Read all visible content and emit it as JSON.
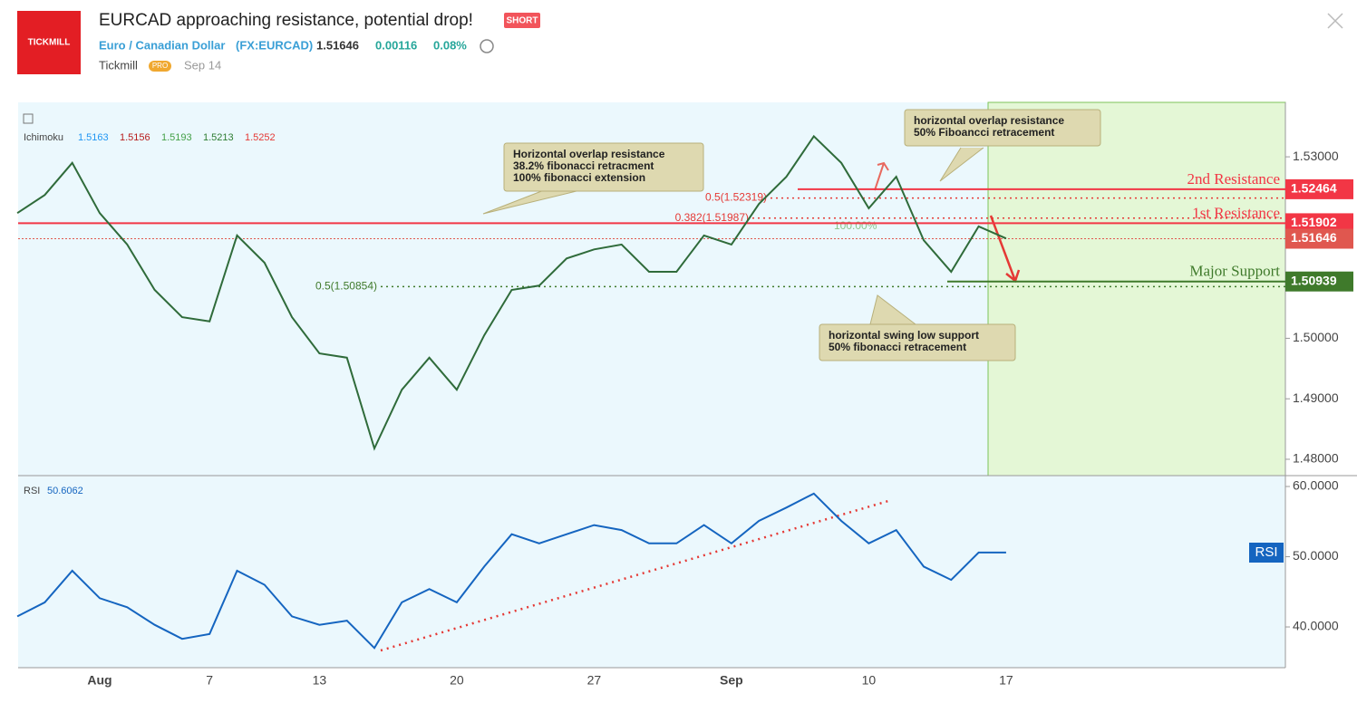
{
  "header": {
    "title": "EURCAD approaching resistance, potential drop!",
    "badge": "SHORT",
    "logo": "TICKMILL",
    "symbol_name": "Euro / Canadian Dollar",
    "symbol": "(FX:EURCAD)",
    "price": "1.51646",
    "change": "0.00116",
    "change_pct": "0.08%",
    "author": "Tickmill",
    "author_badge": "PRO",
    "date": "Sep 14"
  },
  "chart_data": [
    {
      "type": "line",
      "color": "#2f6b3a",
      "categories": [
        null,
        null,
        null,
        "Aug",
        null,
        null,
        null,
        "7",
        null,
        null,
        null,
        "13",
        null,
        null,
        null,
        null,
        "20",
        null,
        null,
        null,
        null,
        "27",
        null,
        null,
        null,
        null,
        "Sep",
        null,
        null,
        null,
        null,
        "10",
        null,
        null,
        null,
        null,
        "17",
        null,
        null,
        null,
        null,
        null,
        null,
        null,
        null,
        null,
        null
      ],
      "values": [
        1.5207,
        1.5237,
        1.529,
        1.5207,
        1.5155,
        1.508,
        1.5035,
        1.5028,
        1.517,
        1.5125,
        1.5035,
        1.4975,
        1.4968,
        1.4818,
        1.4915,
        1.4968,
        1.4915,
        1.5005,
        1.508,
        1.5087,
        1.5132,
        1.5147,
        1.5155,
        1.511,
        1.511,
        1.517,
        1.5155,
        1.5222,
        1.5267,
        1.5334,
        1.529,
        1.5215,
        1.5267,
        1.5162,
        1.511,
        1.5185,
        1.5165,
        null,
        null,
        null,
        null,
        null,
        null,
        null,
        null,
        null,
        null
      ],
      "ylim": [
        1.4773,
        1.539
      ],
      "yticks": [
        {
          "value": 1.48,
          "label": "1.48000"
        },
        {
          "value": 1.49,
          "label": "1.49000"
        },
        {
          "value": 1.5,
          "label": "1.50000"
        },
        {
          "value": 1.53,
          "label": "1.53000"
        }
      ],
      "indicator": {
        "name": "Ichimoku",
        "values": [
          "1.5163",
          "1.5156",
          "1.5193",
          "1.5213",
          "1.5252"
        ],
        "colors": [
          "#2196f3",
          "#b71c1c",
          "#43a047",
          "#2e7d32",
          "#e53935"
        ]
      },
      "levels": [
        {
          "label": "2nd Resistance",
          "value": 1.52464,
          "color": "#f23645"
        },
        {
          "label": "1st Resistance",
          "value": 1.51902,
          "color": "#f23645"
        },
        {
          "value": 1.51646,
          "color": "#e0574f"
        },
        {
          "label": "Major Support",
          "value": 1.50939,
          "color": "#3f7a2b"
        }
      ],
      "fib": [
        {
          "label": "0.5(1.52319)",
          "value": 1.52319,
          "color": "#e53935"
        },
        {
          "label": "0.382(1.51987)",
          "value": 1.51987,
          "color": "#e53935"
        },
        {
          "label": "0.5(1.50854)",
          "value": 1.50854,
          "color": "#3f7a2b"
        }
      ],
      "fib_extension_label": "100.00%",
      "annotations": [
        [
          "Horizontal overlap resistance",
          "38.2% fibonacci retracment",
          "100% fibonacci extension"
        ],
        [
          "horizontal overlap resistance",
          "50% Fiboancci retracement"
        ],
        [
          "horizontal swing low support",
          "50% fibonacci retracement"
        ]
      ]
    },
    {
      "type": "line",
      "title": "RSI",
      "value_label": "50.6062",
      "color": "#1565c0",
      "values": [
        41.5,
        43.5,
        48,
        44.1,
        42.8,
        40.3,
        38.3,
        39,
        48,
        46,
        41.5,
        40.3,
        40.9,
        37,
        43.5,
        45.4,
        43.5,
        48.6,
        53.2,
        51.9,
        53.2,
        54.5,
        53.8,
        51.9,
        51.9,
        54.5,
        51.9,
        55.1,
        57,
        59,
        55.1,
        51.9,
        53.8,
        48.6,
        46.7,
        50.6,
        50.6,
        null,
        null,
        null,
        null,
        null,
        null,
        null,
        null,
        null,
        null
      ],
      "ylim": [
        34.2,
        61.55
      ],
      "yticks": [
        {
          "value": 40,
          "label": "40.0000"
        },
        {
          "value": 50,
          "label": "50.0000"
        },
        {
          "value": 60,
          "label": "60.0000"
        }
      ]
    }
  ]
}
